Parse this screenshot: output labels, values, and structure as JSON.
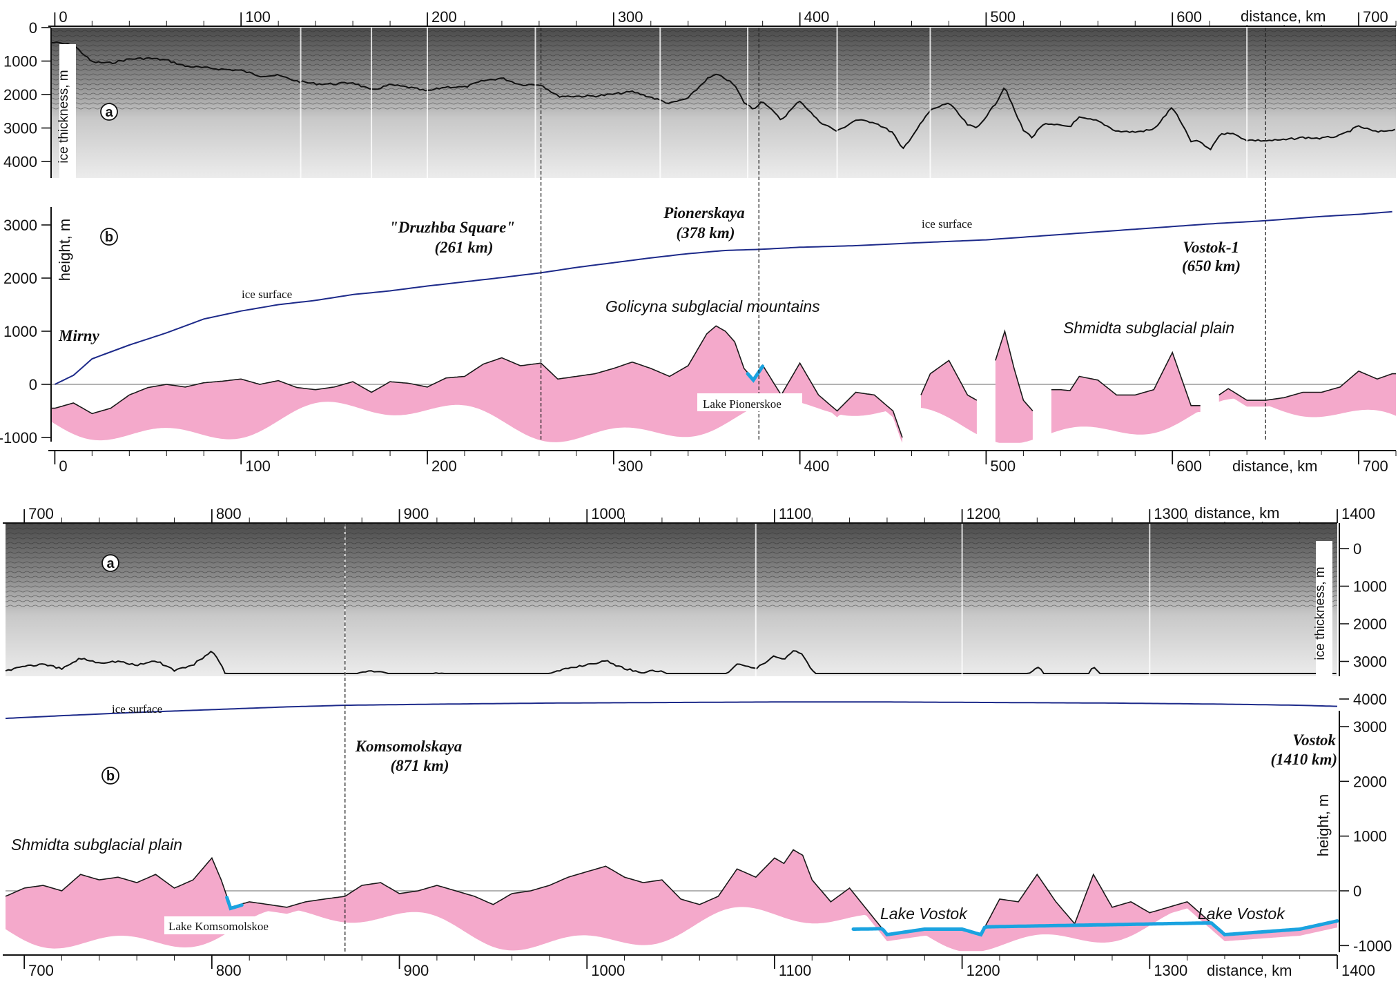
{
  "chart_data": [
    {
      "type": "area",
      "panel": "top",
      "x_label": "distance, km",
      "x_ticks": [
        0,
        100,
        200,
        300,
        400,
        500,
        600,
        700
      ],
      "x_range": [
        -2,
        720
      ],
      "sub_a": {
        "marker": "a",
        "y_label": "ice thickness, m",
        "y_ticks": [
          0,
          1000,
          2000,
          3000,
          4000
        ],
        "y_range": [
          0,
          4600
        ]
      },
      "sub_b": {
        "marker": "b",
        "y_label": "height, m",
        "y_ticks": [
          3000,
          2000,
          1000,
          0,
          -1000
        ],
        "y_range": [
          -1150,
          3500
        ]
      },
      "ice_surface_label": "ice surface",
      "ice_surface": {
        "x": [
          0,
          10,
          20,
          40,
          60,
          80,
          100,
          120,
          140,
          160,
          180,
          200,
          220,
          240,
          261,
          280,
          300,
          320,
          340,
          360,
          378,
          400,
          430,
          460,
          500,
          540,
          580,
          620,
          650,
          680,
          700,
          718
        ],
        "y": [
          0,
          170,
          480,
          740,
          970,
          1230,
          1380,
          1500,
          1580,
          1690,
          1760,
          1850,
          1930,
          2010,
          2100,
          2200,
          2290,
          2380,
          2460,
          2520,
          2540,
          2580,
          2610,
          2660,
          2720,
          2820,
          2920,
          3020,
          3080,
          3160,
          3200,
          3250
        ]
      },
      "bed": {
        "x": [
          0,
          10,
          20,
          30,
          40,
          50,
          60,
          70,
          80,
          90,
          100,
          110,
          120,
          130,
          140,
          150,
          160,
          170,
          180,
          190,
          200,
          210,
          220,
          230,
          240,
          250,
          261,
          270,
          280,
          290,
          300,
          310,
          320,
          330,
          340,
          350,
          355,
          360,
          365,
          370,
          375,
          380,
          390,
          400,
          410,
          420,
          430,
          440,
          450,
          455,
          465,
          470,
          480,
          490,
          495,
          505,
          510,
          515,
          520,
          525,
          530,
          540,
          545,
          550,
          560,
          570,
          580,
          590,
          600,
          610,
          615,
          620,
          625,
          630,
          640,
          650,
          660,
          670,
          680,
          690,
          700,
          710,
          718
        ],
        "y": [
          -450,
          -350,
          -550,
          -450,
          -200,
          -60,
          0,
          -50,
          30,
          60,
          100,
          0,
          70,
          -60,
          -100,
          -50,
          50,
          -150,
          50,
          20,
          -50,
          120,
          150,
          380,
          500,
          350,
          400,
          100,
          150,
          200,
          300,
          420,
          300,
          150,
          350,
          950,
          1100,
          1000,
          800,
          300,
          100,
          360,
          -200,
          400,
          -200,
          -500,
          -150,
          -200,
          -500,
          -1000,
          -200,
          200,
          450,
          -200,
          -300,
          450,
          1000,
          300,
          -300,
          -500,
          -100,
          -100,
          -120,
          150,
          80,
          -200,
          -200,
          -100,
          600,
          -400,
          -400,
          -650,
          -200,
          -80,
          -300,
          -300,
          -250,
          -150,
          -150,
          -50,
          250,
          100,
          200
        ]
      },
      "bed_gaps_km": [
        [
          455,
          465
        ],
        [
          495,
          505
        ],
        [
          525,
          535
        ],
        [
          615,
          625
        ]
      ],
      "lake": {
        "label": "Lake Pionerskoe",
        "x": [
          [
            372,
            380
          ]
        ]
      },
      "stations": [
        {
          "name": "Mirny",
          "km": 0
        },
        {
          "name": "\"Druzhba Square\"",
          "distance": "(261 km)",
          "km": 261
        },
        {
          "name": "Pionerskaya",
          "distance": "(378 km)",
          "km": 378
        },
        {
          "name": "Vostok-1",
          "distance": "(650 km)",
          "km": 650
        }
      ],
      "regions": [
        "Golicyna subglacial mountains",
        "Shmidta subglacial plain"
      ]
    },
    {
      "type": "area",
      "panel": "bottom",
      "x_label": "distance, km",
      "x_ticks": [
        700,
        800,
        900,
        1000,
        1100,
        1200,
        1300,
        1400
      ],
      "x_range": [
        690,
        1400
      ],
      "sub_a": {
        "marker": "a",
        "y_label": "ice thickness, m",
        "y_ticks": [
          0,
          1000,
          2000,
          3000,
          4000
        ],
        "y_range": [
          0,
          4600
        ]
      },
      "sub_b": {
        "marker": "b",
        "y_label": "height, m",
        "y_ticks": [
          3000,
          2000,
          1000,
          0,
          -1000
        ],
        "y_range": [
          -1150,
          3500
        ]
      },
      "ice_surface_label": "ice surface",
      "ice_surface": {
        "x": [
          690,
          720,
          760,
          800,
          840,
          871,
          920,
          980,
          1040,
          1100,
          1160,
          1220,
          1280,
          1340,
          1380,
          1400
        ],
        "y": [
          3150,
          3200,
          3260,
          3310,
          3360,
          3390,
          3410,
          3430,
          3440,
          3450,
          3450,
          3440,
          3430,
          3410,
          3390,
          3370
        ]
      },
      "bed": {
        "x": [
          690,
          700,
          710,
          720,
          730,
          740,
          750,
          760,
          770,
          780,
          790,
          795,
          800,
          805,
          810,
          820,
          830,
          840,
          850,
          860,
          871,
          880,
          890,
          900,
          910,
          920,
          930,
          940,
          950,
          960,
          970,
          980,
          990,
          1000,
          1010,
          1020,
          1030,
          1040,
          1050,
          1060,
          1070,
          1080,
          1090,
          1100,
          1105,
          1110,
          1115,
          1120,
          1130,
          1140,
          1160,
          1180,
          1200,
          1210,
          1220,
          1230,
          1240,
          1250,
          1260,
          1270,
          1280,
          1290,
          1300,
          1310,
          1320,
          1340,
          1360,
          1380,
          1400
        ],
        "y": [
          -100,
          50,
          100,
          0,
          300,
          200,
          250,
          150,
          300,
          50,
          200,
          400,
          600,
          200,
          -300,
          -200,
          -250,
          -300,
          -200,
          -150,
          -100,
          100,
          150,
          -50,
          0,
          100,
          0,
          -100,
          -250,
          -50,
          0,
          100,
          250,
          350,
          450,
          250,
          150,
          200,
          -150,
          -250,
          -100,
          400,
          250,
          600,
          500,
          750,
          650,
          200,
          -200,
          50,
          -800,
          -700,
          -700,
          -800,
          -150,
          -200,
          300,
          -200,
          -600,
          300,
          -300,
          -200,
          -400,
          -300,
          -200,
          -800,
          -750,
          -700,
          -550
        ]
      },
      "lakes": [
        {
          "label": "Lake Komsomolskoe",
          "x": [
            [
              808,
              816
            ]
          ]
        },
        {
          "label": "Lake Vostok",
          "x": [
            [
              1142,
              1400
            ]
          ]
        }
      ],
      "stations": [
        {
          "name": "Komsomolskaya",
          "distance": "(871 km)",
          "km": 871
        },
        {
          "name": "Vostok",
          "distance": "(1410 km)",
          "km": 1410
        }
      ],
      "regions": [
        "Shmidta subglacial plain"
      ]
    }
  ]
}
